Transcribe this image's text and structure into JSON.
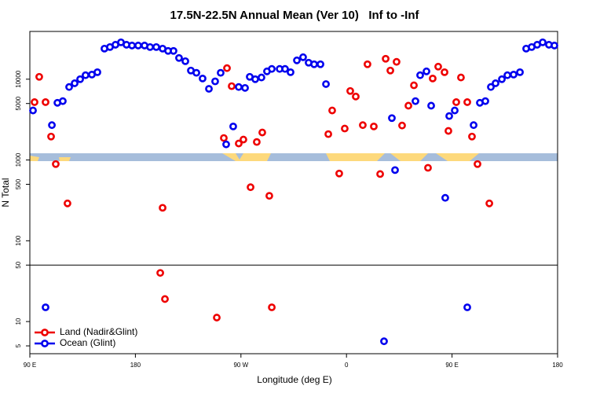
{
  "chart_data": {
    "type": "scatter",
    "title": "17.5N-22.5N Annual Mean (Ver 10)   Inf to -Inf",
    "x_label": "Longitude (deg E)",
    "y_label": "N Total",
    "xlim": [
      90,
      540
    ],
    "xticks": [
      {
        "value": 90,
        "label": "90 E"
      },
      180,
      {
        "value": 270,
        "label": "90 W"
      },
      {
        "value": 360,
        "label": "0"
      },
      {
        "value": 450,
        "label": "90 E"
      },
      {
        "value": 540,
        "label": "180"
      }
    ],
    "ylim": [
      4,
      39000
    ],
    "log_y": true,
    "yticks": [
      5,
      10,
      50,
      100,
      500,
      1000,
      5000,
      10000
    ],
    "hline": 50,
    "legend": "bottom-left",
    "series": [
      {
        "name": "Land (Nadir&Glint)",
        "color": "#ee0000",
        "x": [
          94.0,
          98.0,
          103.4,
          108.1,
          112.1,
          122.1,
          203.2,
          201.2,
          205.2,
          249.4,
          255.4,
          258.1,
          262.1,
          268.1,
          272.1,
          278.2,
          283.5,
          288.2,
          294.2,
          296.3,
          344.5,
          347.8,
          353.8,
          358.5,
          363.2,
          367.9,
          373.9,
          377.9,
          383.3,
          388.7,
          393.4,
          397.4,
          402.7,
          407.4,
          412.8,
          417.5,
          429.5,
          433.5,
          438.2,
          443.6,
          446.9,
          453.6,
          457.6,
          463.0,
          467.0,
          471.7,
          481.8
        ],
        "values": [
          5200,
          10700,
          5200,
          1950,
          890,
          290,
          256,
          40,
          19,
          11.2,
          1870,
          13700,
          8200,
          1600,
          1790,
          460,
          1670,
          2190,
          360,
          15,
          2090,
          4100,
          680,
          2450,
          7150,
          6100,
          2700,
          15300,
          2600,
          670,
          17900,
          12800,
          16400,
          2670,
          4700,
          8400,
          800,
          10200,
          14300,
          12200,
          2290,
          5200,
          10500,
          5200,
          1950,
          890,
          290
        ]
      },
      {
        "name": "Ocean (Glint)",
        "color": "#0000ee",
        "x": [
          92.7,
          103.4,
          108.8,
          113.5,
          118.1,
          123.5,
          128.2,
          132.9,
          137.5,
          142.9,
          147.6,
          153.6,
          158.3,
          163.0,
          167.7,
          172.4,
          177.1,
          182.4,
          187.8,
          192.5,
          197.8,
          203.2,
          207.9,
          212.5,
          217.2,
          222.6,
          227.3,
          232.0,
          237.3,
          242.7,
          248.0,
          252.7,
          257.4,
          263.4,
          268.1,
          273.5,
          277.5,
          282.2,
          287.5,
          292.2,
          296.3,
          303.0,
          307.6,
          312.3,
          317.7,
          323.0,
          327.7,
          332.4,
          337.8,
          342.5,
          392.0,
          398.7,
          401.4,
          418.8,
          422.8,
          428.2,
          432.2,
          444.2,
          447.6,
          452.3,
          463.0,
          468.4,
          473.7,
          478.4,
          483.1,
          487.1,
          492.5,
          497.2,
          502.5,
          507.9,
          513.2,
          517.9,
          522.6,
          527.3,
          532.6,
          537.3
        ],
        "values": [
          4100,
          15,
          2700,
          5100,
          5350,
          8000,
          8900,
          10000,
          11200,
          11400,
          12200,
          23900,
          25000,
          26700,
          28600,
          26700,
          26100,
          26100,
          26100,
          25000,
          25000,
          23900,
          22400,
          22400,
          18300,
          16700,
          12800,
          12000,
          10200,
          7600,
          9400,
          12000,
          1560,
          2600,
          8000,
          7800,
          10700,
          10000,
          10500,
          12500,
          13400,
          13400,
          13400,
          12200,
          17100,
          18700,
          16000,
          15300,
          15300,
          8700,
          5.7,
          3300,
          750,
          5350,
          11200,
          12500,
          4700,
          340,
          3500,
          4100,
          15,
          2700,
          5100,
          5350,
          8000,
          8900,
          10000,
          11200,
          11400,
          12200,
          23900,
          25000,
          26700,
          28600,
          26700,
          26100
        ]
      }
    ]
  }
}
